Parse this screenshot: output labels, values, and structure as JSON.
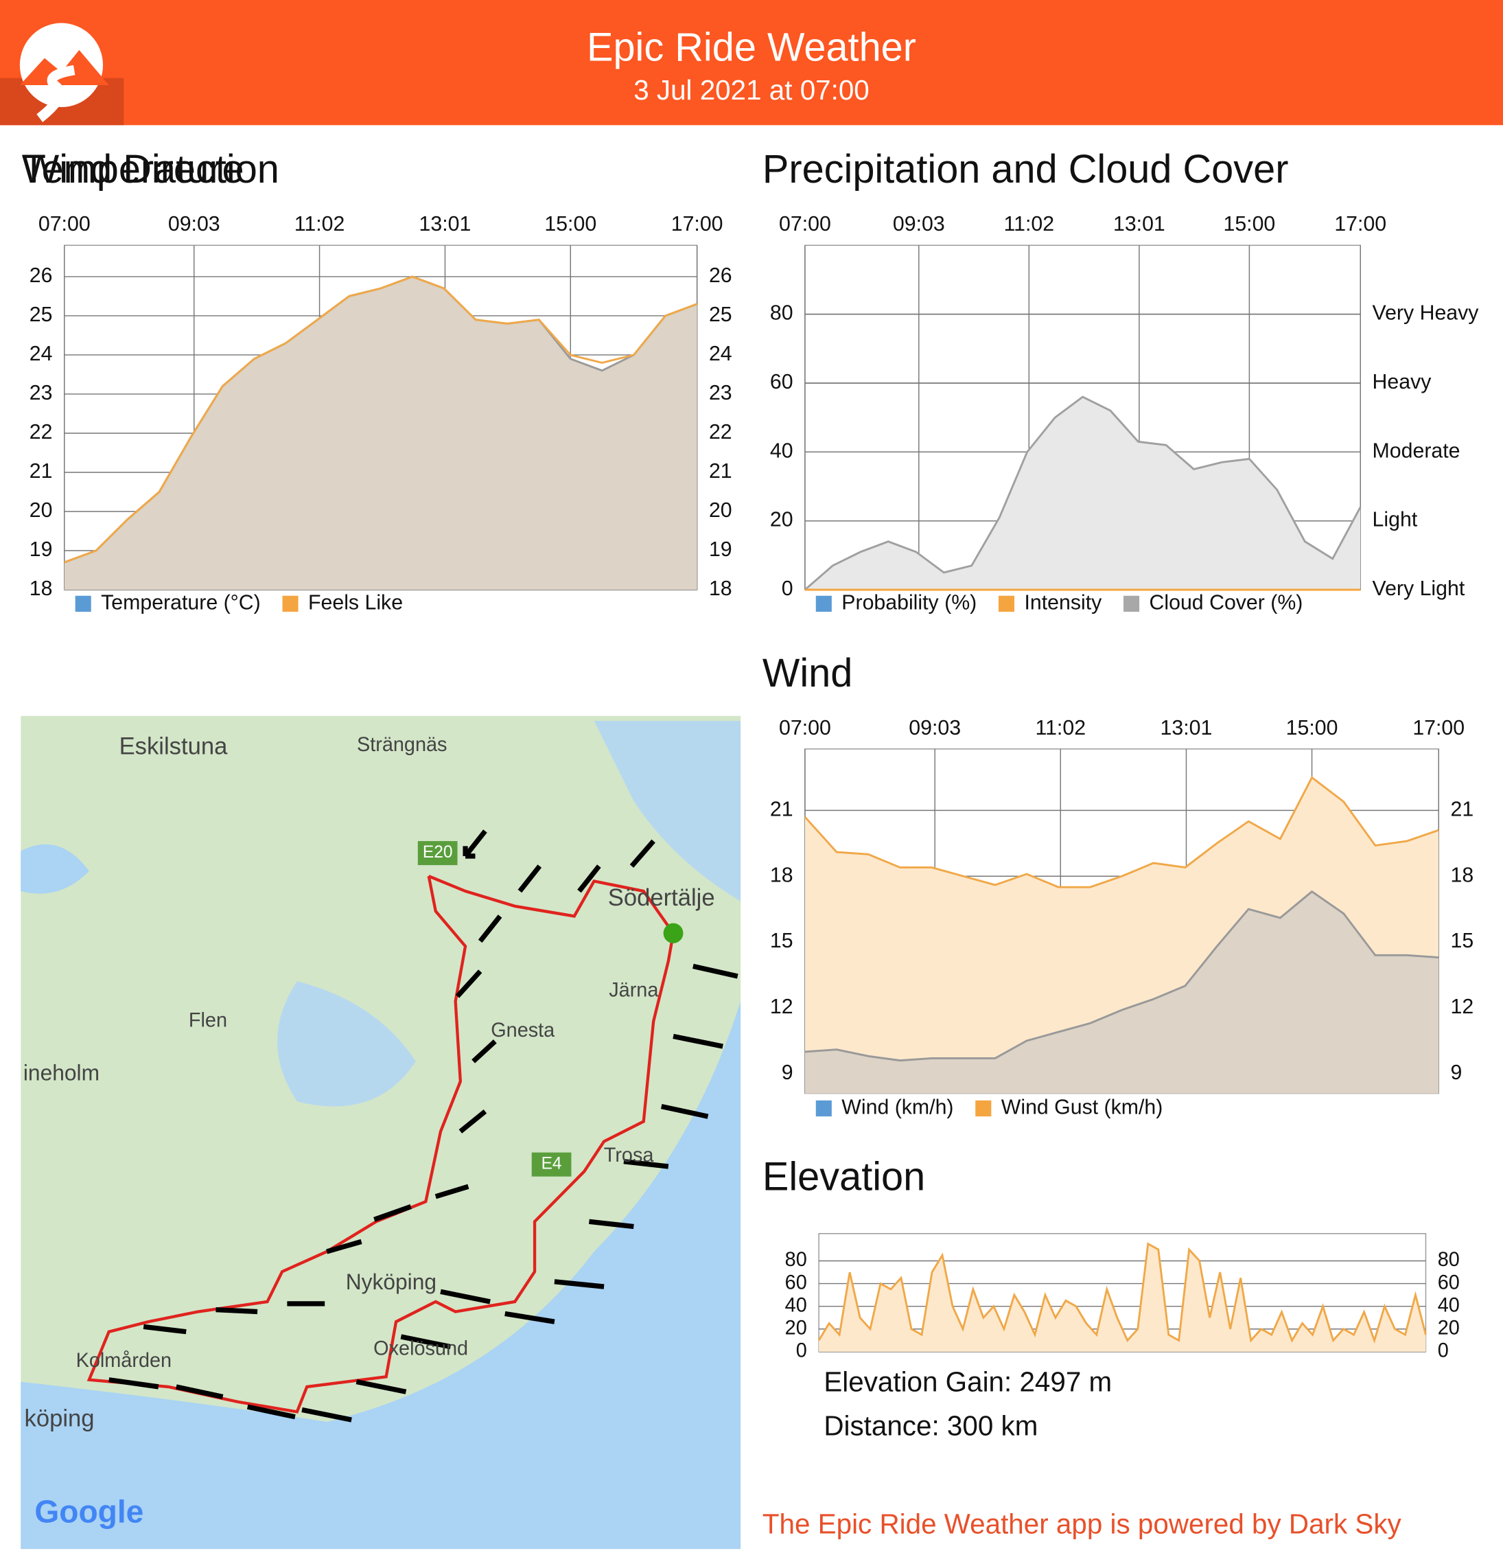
{
  "header": {
    "title": "Epic Ride Weather",
    "subtitle": "3 Jul 2021 at 07:00"
  },
  "chart_data": [
    {
      "type": "area",
      "title": "Temperature",
      "x": [
        7,
        7.5,
        8,
        8.5,
        9,
        9.5,
        10,
        10.5,
        11,
        11.5,
        12,
        12.5,
        13,
        13.5,
        14,
        14.5,
        15,
        15.5,
        16,
        16.5,
        17
      ],
      "xlim": [
        7,
        17
      ],
      "xticks": [
        {
          "value": 7,
          "label": "07:00"
        },
        {
          "value": 9.05,
          "label": "09:03"
        },
        {
          "value": 11.033,
          "label": "11:02"
        },
        {
          "value": 13.017,
          "label": "13:01"
        },
        {
          "value": 15,
          "label": "15:00"
        },
        {
          "value": 17,
          "label": "17:00"
        }
      ],
      "ylim": [
        18,
        26.8
      ],
      "yticks": [
        18,
        19,
        20,
        21,
        22,
        23,
        24,
        25,
        26
      ],
      "mirror_yticks": true,
      "grid": true,
      "series": [
        {
          "name": "Temperature (°C)",
          "color": "#5b9bd5",
          "line_color": "#9a9a9a",
          "fill_color": "#ddd3c6",
          "values": [
            18.7,
            19.0,
            19.8,
            20.5,
            21.9,
            23.2,
            23.9,
            24.3,
            24.9,
            25.5,
            25.7,
            26.0,
            25.7,
            24.9,
            24.8,
            24.9,
            23.9,
            23.6,
            24.0,
            25.0,
            25.3
          ]
        },
        {
          "name": "Feels Like",
          "color": "#f5a540",
          "line_color": "#f0a848",
          "values": [
            18.7,
            19.0,
            19.8,
            20.5,
            21.9,
            23.2,
            23.9,
            24.3,
            24.9,
            25.5,
            25.7,
            26.0,
            25.7,
            24.9,
            24.8,
            24.9,
            24.0,
            23.8,
            24.0,
            25.0,
            25.3
          ]
        }
      ]
    },
    {
      "type": "area",
      "title": "Precipitation and Cloud Cover",
      "x": [
        7,
        7.5,
        8,
        8.5,
        9,
        9.5,
        10,
        10.5,
        11,
        11.5,
        12,
        12.5,
        13,
        13.5,
        14,
        14.5,
        15,
        15.5,
        16,
        16.5,
        17
      ],
      "xlim": [
        7,
        17
      ],
      "xticks": [
        {
          "value": 7,
          "label": "07:00"
        },
        {
          "value": 9.05,
          "label": "09:03"
        },
        {
          "value": 11.033,
          "label": "11:02"
        },
        {
          "value": 13.017,
          "label": "13:01"
        },
        {
          "value": 15,
          "label": "15:00"
        },
        {
          "value": 17,
          "label": "17:00"
        }
      ],
      "ylim": [
        0,
        100
      ],
      "yticks": [
        0,
        20,
        40,
        60,
        80
      ],
      "grid": true,
      "y2lim": [
        0,
        100
      ],
      "y2ticks": [
        {
          "value": 0,
          "label": "Very Light"
        },
        {
          "value": 20,
          "label": "Light"
        },
        {
          "value": 40,
          "label": "Moderate"
        },
        {
          "value": 60,
          "label": "Heavy"
        },
        {
          "value": 80,
          "label": "Very Heavy"
        }
      ],
      "series": [
        {
          "name": "Probability (%)",
          "color": "#5b9bd5",
          "values": [
            0,
            0,
            0,
            0,
            0,
            0,
            0,
            0,
            0,
            0,
            0,
            0,
            0,
            0,
            0,
            0,
            0,
            0,
            0,
            0,
            0
          ]
        },
        {
          "name": "Intensity",
          "color": "#f5a540",
          "axis": "y2",
          "values": [
            0,
            0,
            0,
            0,
            0,
            0,
            0,
            0,
            0,
            0,
            0,
            0,
            0,
            0,
            0,
            0,
            0,
            0,
            0,
            0,
            0
          ]
        },
        {
          "name": "Cloud Cover (%)",
          "color": "#a8a8a8",
          "line_color": "#a0a0a0",
          "fill_color": "#e8e8e8",
          "values": [
            0,
            7,
            11,
            14,
            11,
            5,
            7,
            21,
            40,
            50,
            56,
            52,
            43,
            42,
            35,
            37,
            38,
            29,
            14,
            9,
            24
          ]
        }
      ]
    },
    {
      "type": "area",
      "title": "Wind",
      "x": [
        7,
        7.5,
        8,
        8.5,
        9,
        9.5,
        10,
        10.5,
        11,
        11.5,
        12,
        12.5,
        13,
        13.5,
        14,
        14.5,
        15,
        15.5,
        16,
        16.5,
        17
      ],
      "xlim": [
        7,
        17
      ],
      "xticks": [
        {
          "value": 7,
          "label": "07:00"
        },
        {
          "value": 9.05,
          "label": "09:03"
        },
        {
          "value": 11.033,
          "label": "11:02"
        },
        {
          "value": 13.017,
          "label": "13:01"
        },
        {
          "value": 15,
          "label": "15:00"
        },
        {
          "value": 17,
          "label": "17:00"
        }
      ],
      "ylim": [
        8.1,
        23.8
      ],
      "yticks": [
        9,
        12,
        15,
        18,
        21
      ],
      "mirror_yticks": true,
      "grid": true,
      "series": [
        {
          "name": "Wind (km/h)",
          "color": "#5b9bd5",
          "line_color": "#999999",
          "fill_color": "#ddd3c6",
          "values": [
            10.0,
            10.1,
            9.8,
            9.6,
            9.7,
            9.7,
            9.7,
            10.5,
            10.9,
            11.3,
            11.9,
            12.4,
            13.0,
            14.8,
            16.5,
            16.1,
            17.3,
            16.3,
            14.4,
            14.4,
            14.3
          ]
        },
        {
          "name": "Wind Gust (km/h)",
          "color": "#f5a540",
          "line_color": "#f0a848",
          "fill_color": "#fde8cc",
          "values": [
            20.7,
            19.1,
            19.0,
            18.4,
            18.4,
            18.0,
            17.6,
            18.1,
            17.5,
            17.5,
            18.0,
            18.6,
            18.4,
            19.5,
            20.5,
            19.7,
            22.5,
            21.4,
            19.4,
            19.6,
            20.1
          ]
        }
      ]
    },
    {
      "type": "area",
      "title": "Elevation",
      "ylim": [
        0,
        104
      ],
      "yticks": [
        0,
        20,
        40,
        60,
        80
      ],
      "mirror_yticks": true,
      "grid": true,
      "color": "#f0a848",
      "fill_color": "#fde8cc",
      "values": [
        10,
        25,
        15,
        70,
        30,
        20,
        60,
        55,
        65,
        20,
        15,
        70,
        85,
        40,
        20,
        55,
        30,
        40,
        20,
        50,
        35,
        15,
        50,
        30,
        45,
        40,
        25,
        15,
        55,
        30,
        10,
        20,
        95,
        90,
        15,
        10,
        90,
        80,
        30,
        70,
        20,
        65,
        10,
        20,
        15,
        35,
        10,
        25,
        15,
        40,
        10,
        20,
        15,
        35,
        10,
        40,
        20,
        15,
        50,
        15
      ]
    }
  ],
  "map": {
    "title": "Wind Direction",
    "labels": [
      "Eskilstuna",
      "Strängnäs",
      "Södertälje",
      "Järna",
      "Flen",
      "Gnesta",
      "ineholm",
      "Nyköping",
      "Oxelösund",
      "Trosa",
      "Kolmården",
      "köping",
      "E20",
      "E4",
      "Google"
    ]
  },
  "elevation_stats": [
    "Elevation Gain: 2497 m",
    "Distance: 300 km"
  ],
  "footer": "The Epic Ride Weather app is powered by Dark Sky"
}
